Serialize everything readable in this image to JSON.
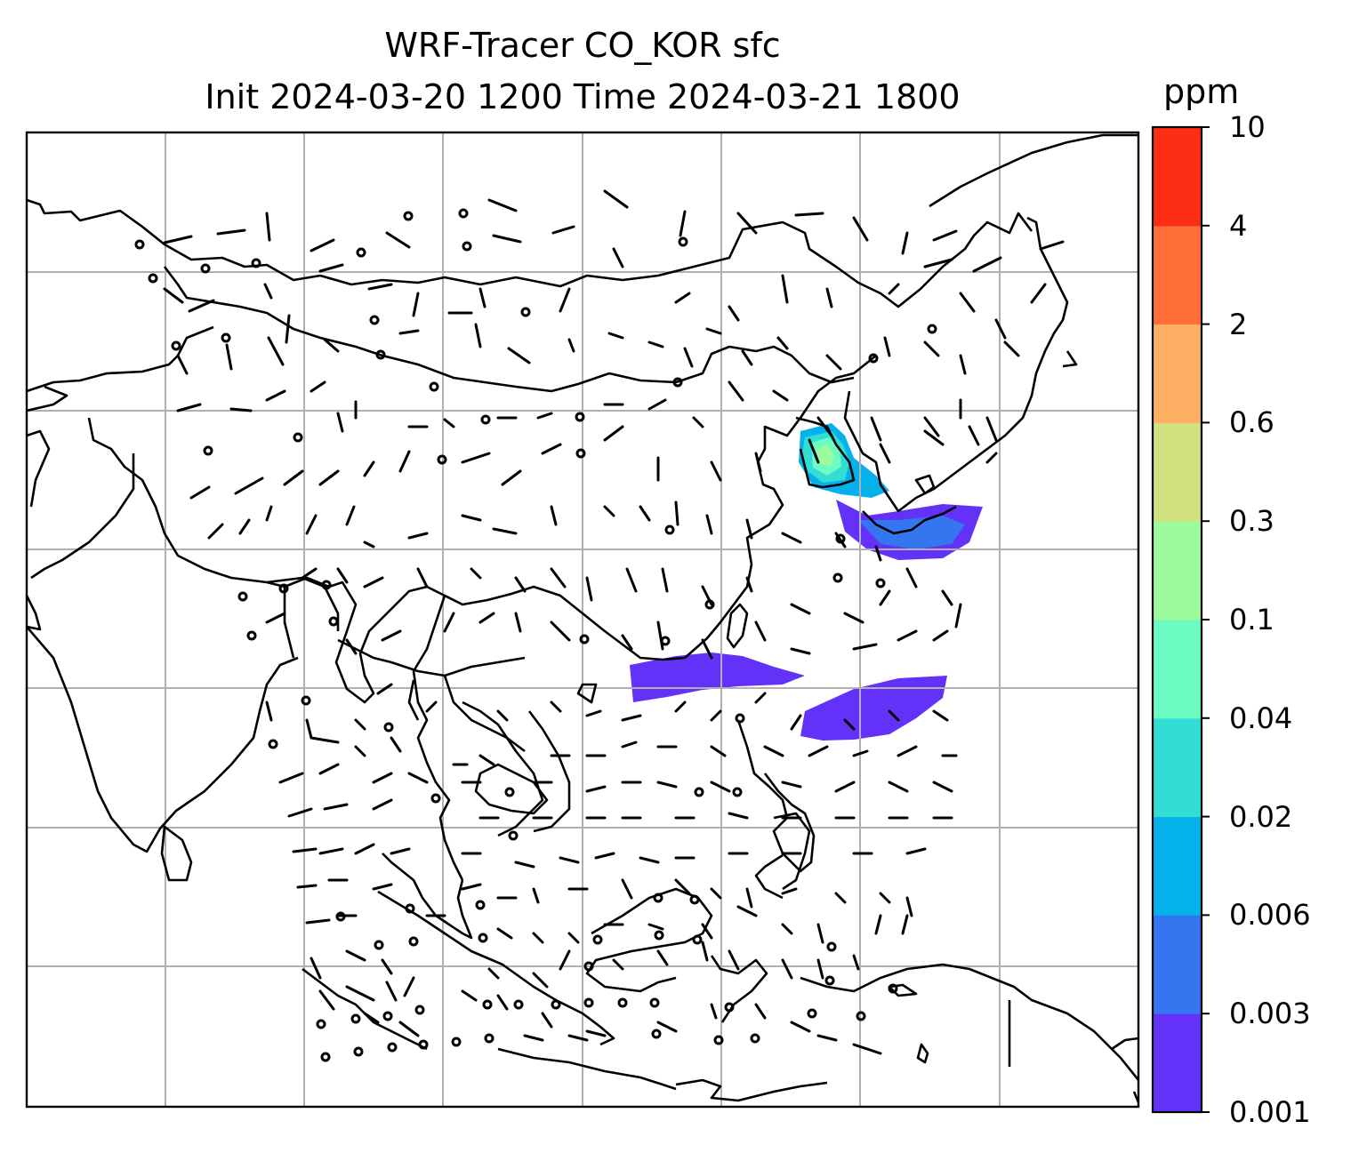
{
  "title": {
    "line1": "WRF-Tracer CO_KOR sfc",
    "line2": "Init 2024-03-20 1200 Time 2024-03-21 1800"
  },
  "colorbar": {
    "unit": "ppm",
    "levels": [
      "0.001",
      "0.003",
      "0.006",
      "0.02",
      "0.04",
      "0.1",
      "0.3",
      "0.6",
      "2",
      "4",
      "10"
    ],
    "colors": [
      "#6431f9",
      "#3475f0",
      "#05b1ea",
      "#32ddd4",
      "#6cfcc3",
      "#9cfc9b",
      "#d1e17f",
      "#feaf63",
      "#ff6f37",
      "#fe2d16"
    ]
  },
  "map": {
    "region": "East and Southeast Asia",
    "gridlines": true,
    "features": [
      "coastlines",
      "country borders",
      "wind barbs",
      "tracer concentration shading"
    ],
    "plumes": [
      {
        "area": "Korean Peninsula",
        "level_range": "0.001–0.1 ppm"
      },
      {
        "area": "Sea of Japan / southern Japan",
        "level_range": "0.001–0.006 ppm"
      },
      {
        "area": "South China Sea / Taiwan Strait",
        "level_range": "0.001–0.003 ppm"
      },
      {
        "area": "Philippine Sea",
        "level_range": "0.001–0.003 ppm"
      }
    ]
  }
}
